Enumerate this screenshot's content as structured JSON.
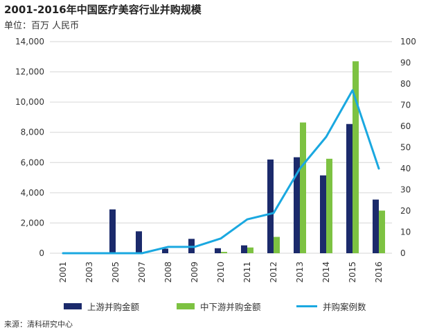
{
  "header": {
    "title": "2001-2016年中国医疗美容行业并购规模",
    "unit": "单位：百万 人民币"
  },
  "footer": {
    "source": "来源：清科研究中心"
  },
  "chart_data": {
    "type": "bar",
    "categories": [
      "2001",
      "2003",
      "2005",
      "2007",
      "2008",
      "2009",
      "2010",
      "2011",
      "2012",
      "2013",
      "2014",
      "2015",
      "2016"
    ],
    "series": [
      {
        "name": "上游并购金额",
        "kind": "bar",
        "axis": "left",
        "color": "#1b2a6b",
        "values": [
          0,
          0,
          2900,
          1450,
          300,
          950,
          330,
          520,
          6200,
          6350,
          5150,
          8550,
          3550
        ]
      },
      {
        "name": "中下游并购金额",
        "kind": "bar",
        "axis": "left",
        "color": "#7dc242",
        "values": [
          0,
          0,
          0,
          0,
          0,
          0,
          90,
          380,
          1080,
          8650,
          6250,
          12700,
          2820
        ]
      },
      {
        "name": "并购案例数",
        "kind": "line",
        "axis": "right",
        "color": "#1aa8e0",
        "values": [
          0,
          0,
          0,
          0,
          3,
          3,
          7,
          16,
          19,
          40,
          55,
          77,
          40
        ]
      }
    ],
    "y_left": {
      "min": 0,
      "max": 14000,
      "ticks": [
        "0",
        "2,000",
        "4,000",
        "6,000",
        "8,000",
        "10,000",
        "12,000",
        "14,000"
      ]
    },
    "y_right": {
      "min": 0,
      "max": 100,
      "ticks": [
        "0",
        "10",
        "20",
        "30",
        "40",
        "50",
        "60",
        "70",
        "80",
        "90",
        "100"
      ]
    },
    "grid": true,
    "legend": "bottom"
  }
}
